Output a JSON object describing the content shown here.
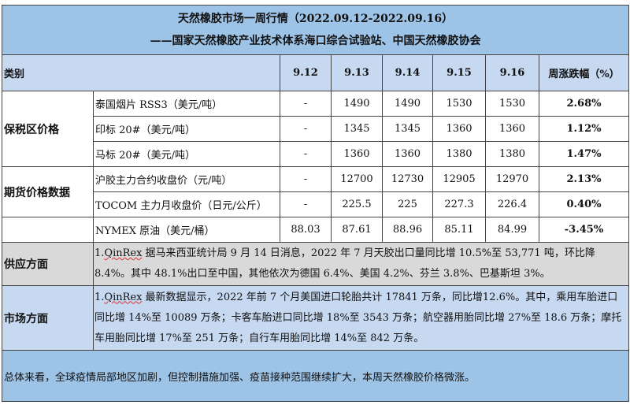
{
  "title": {
    "line1": "天然橡胶市场一周行情（2022.09.12-2022.09.16）",
    "line2": "——国家天然橡胶产业技术体系海口综合试验站、中国天然橡胶协会"
  },
  "header": {
    "category": "类别",
    "dates": [
      "9.12",
      "9.13",
      "9.14",
      "9.15",
      "9.16"
    ],
    "change": "周涨跌幅（%）"
  },
  "groups": {
    "bonded": "保税区价格",
    "futures": "期货价格数据"
  },
  "rows": [
    {
      "item": "泰国烟片 RSS3（美元/吨）",
      "values": [
        "-",
        "1490",
        "1490",
        "1530",
        "1530"
      ],
      "change": "2.68%"
    },
    {
      "item": "印标 20#（美元/吨）",
      "values": [
        "-",
        "1345",
        "1345",
        "1360",
        "1360"
      ],
      "change": "1.12%"
    },
    {
      "item": "马标 20#（美元/吨）",
      "values": [
        "-",
        "1360",
        "1360",
        "1380",
        "1380"
      ],
      "change": "1.47%"
    },
    {
      "item": "沪胶主力合约收盘价（元/吨）",
      "values": [
        "-",
        "12700",
        "12730",
        "12905",
        "12970"
      ],
      "change": "2.13%"
    },
    {
      "item": "TOCOM 主力月收盘价（日元/公斤）",
      "values": [
        "-",
        "225.5",
        "225",
        "227.3",
        "226.4"
      ],
      "change": "0.40%"
    },
    {
      "item": "NYMEX 原油（美元/桶）",
      "values": [
        "88.03",
        "87.61",
        "88.96",
        "85.11",
        "84.99"
      ],
      "change": "-3.45%"
    }
  ],
  "supply": {
    "label": "供应方面",
    "prefix": "1.",
    "source": "QinRex",
    "text": " 据马来西亚统计局 9 月 14 日消息，2022 年 7 月天胶出口量同比增 10.5%至 53,771 吨，环比降 8.4%。其中 48.1%出口至中国，其他依次为德国 6.4%、美国 4.2%、芬兰 3.8%、巴基斯坦 3%。"
  },
  "market": {
    "label": "市场方面",
    "prefix": "1.",
    "source": "QinRex",
    "text": " 最新数据显示，2022 年前 7 个月美国进口轮胎共计 17841 万条，同比增12.6%。其中，乘用车胎进口同比增 14%至 10089 万条；卡客车胎进口同比增 18%至 3543 万条；航空器用胎同比增 27%至 18.6 万条；摩托车用胎同比增 17%至 251 万条；自行车用胎同比增 14%至 842 万条。"
  },
  "summary": "总体来看，全球疫情局部地区加剧，但控制措施加强、疫苗接种范围继续扩大，本周天然橡胶价格微涨。",
  "colors": {
    "title_bg": "#9dc3e6",
    "header_bg": "#c6d9f1",
    "supply_bg": "#d9d9d9"
  }
}
